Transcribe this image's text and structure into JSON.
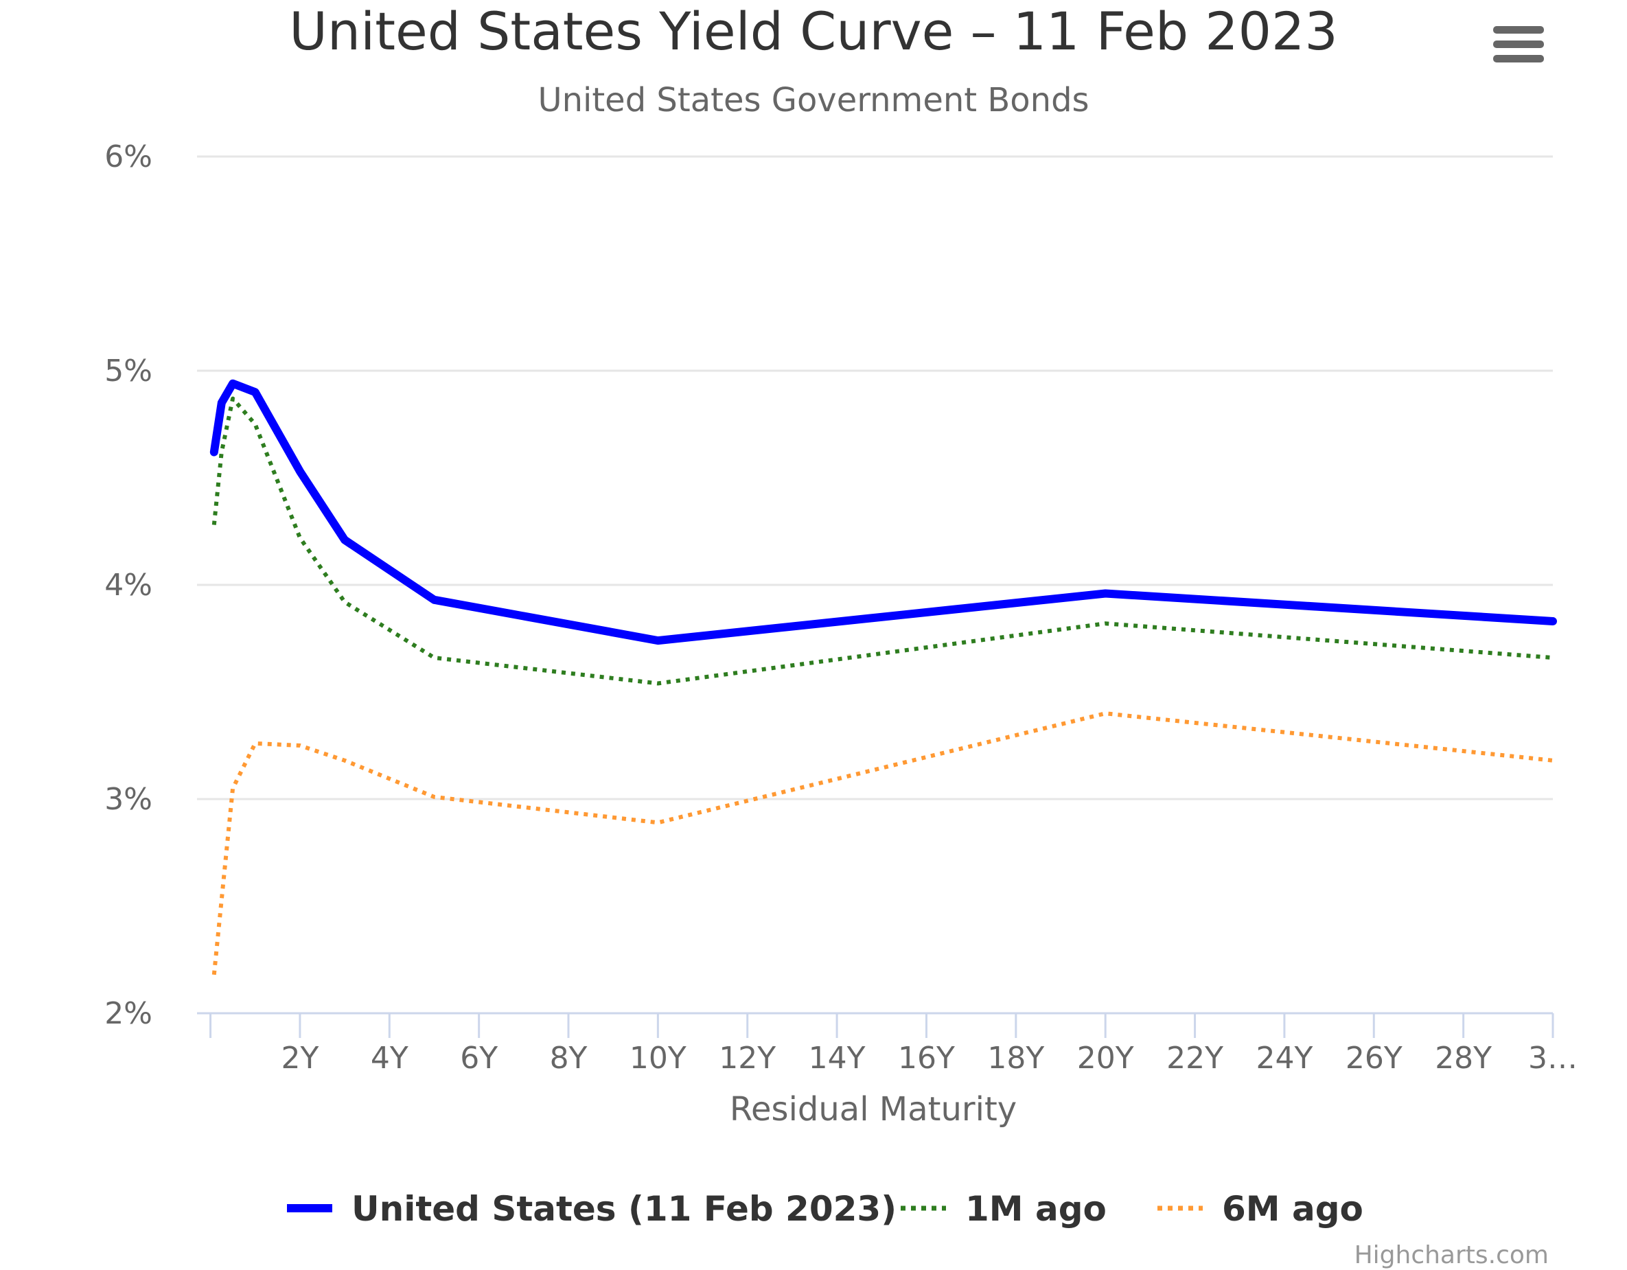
{
  "menu": {
    "icon": "hamburger-menu-icon"
  },
  "credits": "Highcharts.com",
  "chart_data": {
    "type": "line",
    "title": "United States Yield Curve – 11 Feb 2023",
    "subtitle": "United States Government Bonds",
    "xlabel": "Residual Maturity",
    "ylabel": "",
    "ylim": [
      2,
      6
    ],
    "yticks": [
      2,
      3,
      4,
      5,
      6
    ],
    "ytick_labels": [
      "2%",
      "3%",
      "4%",
      "5%",
      "6%"
    ],
    "xlim": [
      0,
      30
    ],
    "xticks": [
      2,
      4,
      6,
      8,
      10,
      12,
      14,
      16,
      18,
      20,
      22,
      24,
      26,
      28,
      30
    ],
    "xtick_labels": [
      "2Y",
      "4Y",
      "6Y",
      "8Y",
      "10Y",
      "12Y",
      "14Y",
      "16Y",
      "18Y",
      "20Y",
      "22Y",
      "24Y",
      "26Y",
      "28Y",
      "3…"
    ],
    "grid": true,
    "legend_position": "bottom",
    "series": [
      {
        "name": "United States (11 Feb 2023)",
        "color": "#0000ff",
        "style": "solid",
        "x": [
          0.08,
          0.25,
          0.5,
          1,
          2,
          3,
          5,
          10,
          20,
          30
        ],
        "values": [
          4.62,
          4.85,
          4.94,
          4.9,
          4.53,
          4.21,
          3.93,
          3.74,
          3.96,
          3.83
        ]
      },
      {
        "name": "1M ago",
        "color": "#2e7d1f",
        "style": "dotted",
        "x": [
          0.08,
          0.25,
          0.5,
          1,
          2,
          3,
          5,
          10,
          20,
          30
        ],
        "values": [
          4.28,
          4.62,
          4.87,
          4.75,
          4.22,
          3.92,
          3.66,
          3.54,
          3.82,
          3.66
        ]
      },
      {
        "name": "6M ago",
        "color": "#ff9933",
        "style": "dotted",
        "x": [
          0.08,
          0.5,
          1,
          2,
          3,
          5,
          10,
          20,
          30
        ],
        "values": [
          2.18,
          3.05,
          3.26,
          3.25,
          3.18,
          3.01,
          2.89,
          3.4,
          3.18
        ]
      }
    ]
  }
}
